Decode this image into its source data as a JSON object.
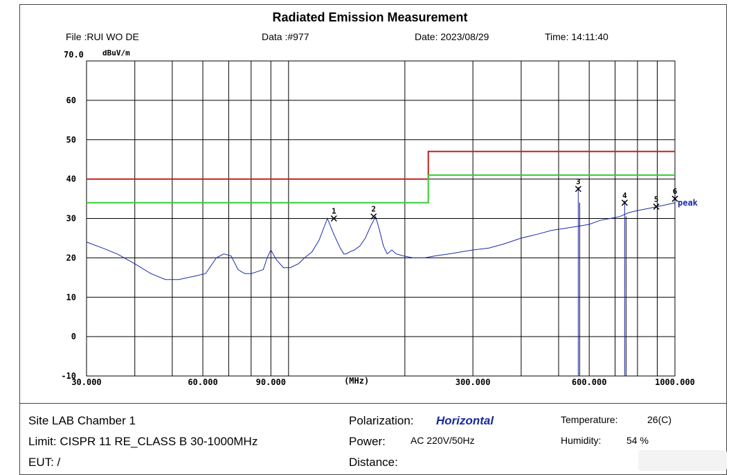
{
  "header": {
    "title": "Radiated Emission Measurement",
    "file": "File :RUI WO DE",
    "data": "Data :#977",
    "date": "Date: 2023/08/29",
    "time": "Time: 14:11:40"
  },
  "footer": {
    "site": "Site  LAB Chamber 1",
    "limit": "Limit:  CISPR 11 RE_CLASS B 30-1000MHz",
    "eut": "EUT:  /",
    "polarization_label": "Polarization:",
    "polarization_value": "Horizontal",
    "power_label": "Power:",
    "power_value": "AC 220V/50Hz",
    "distance_label": "Distance:",
    "temperature_label": "Temperature:",
    "temperature_value": "26(C)",
    "humidity_label": "Humidity:",
    "humidity_value": "54 %"
  },
  "colors": {
    "limit": "#c0201b",
    "margin": "#33cc33",
    "trace": "#1b2aa8",
    "grid": "#000000"
  },
  "chart_data": {
    "type": "line",
    "xscale": "log",
    "xlim": [
      30,
      1000
    ],
    "ylim": [
      -10,
      70
    ],
    "yunit": "dBuV/m",
    "xunit": "(MHz)",
    "ytop_label": "70.0",
    "yticks": [
      60,
      50,
      40,
      30,
      20,
      10,
      0,
      -10
    ],
    "xtick_labels": [
      {
        "value": 30,
        "label": "30.000"
      },
      {
        "value": 60,
        "label": "60.000"
      },
      {
        "value": 90,
        "label": "90.000"
      },
      {
        "value": 300,
        "label": "300.000"
      },
      {
        "value": 600,
        "label": "600.000"
      },
      {
        "value": 1000,
        "label": "1000.000"
      }
    ],
    "xunit_at": 150,
    "series": [
      {
        "role": "limit",
        "x": [
          30,
          230,
          230,
          1000
        ],
        "y": [
          40,
          40,
          47,
          47
        ]
      },
      {
        "role": "margin",
        "x": [
          30,
          230,
          230,
          1000
        ],
        "y": [
          34,
          34,
          41,
          41
        ]
      },
      {
        "name": "peak",
        "role": "trace",
        "x": [
          30,
          33,
          36,
          40,
          44,
          48,
          52,
          55,
          58,
          61,
          63,
          65,
          68,
          71,
          74,
          77,
          80,
          83,
          86,
          88,
          90,
          93,
          97,
          101,
          106,
          110,
          115,
          120,
          126,
          131,
          136,
          139,
          141,
          144,
          148,
          153,
          158,
          163,
          168,
          172,
          176,
          180,
          185,
          190,
          198,
          210,
          225,
          240,
          260,
          280,
          300,
          330,
          360,
          400,
          440,
          480,
          520,
          560,
          600,
          640,
          680,
          720,
          760,
          800,
          850,
          900,
          950,
          1000
        ],
        "y": [
          24,
          22.5,
          21,
          18.5,
          16,
          14.5,
          14.5,
          15,
          15.5,
          16,
          18,
          20,
          21,
          20.5,
          17,
          16,
          16,
          16.5,
          17,
          20,
          22,
          19.5,
          17.5,
          17.5,
          18.5,
          20,
          21.5,
          24.5,
          30,
          26,
          22.5,
          21,
          21,
          21.5,
          22,
          23,
          25,
          28,
          30.5,
          27,
          23,
          21,
          22,
          21,
          20.5,
          20,
          20,
          20.5,
          21,
          21.5,
          22,
          22.5,
          23.5,
          25,
          26,
          27,
          27.5,
          28,
          28.5,
          29.5,
          30,
          30.5,
          31.5,
          32,
          32.5,
          33,
          33.5,
          34
        ]
      }
    ],
    "markers": [
      {
        "label": "1",
        "x": 131,
        "y": 30
      },
      {
        "label": "2",
        "x": 166,
        "y": 30.5
      },
      {
        "label": "3",
        "x": 562,
        "y": 37.5
      },
      {
        "label": "4",
        "x": 741,
        "y": 34
      },
      {
        "label": "5",
        "x": 895,
        "y": 33
      },
      {
        "label": "6",
        "x": 1000,
        "y": 35
      }
    ],
    "spikes": [
      {
        "x": 562,
        "y": 38
      },
      {
        "x": 741,
        "y": 34.5
      }
    ],
    "trace_label": "peak"
  }
}
